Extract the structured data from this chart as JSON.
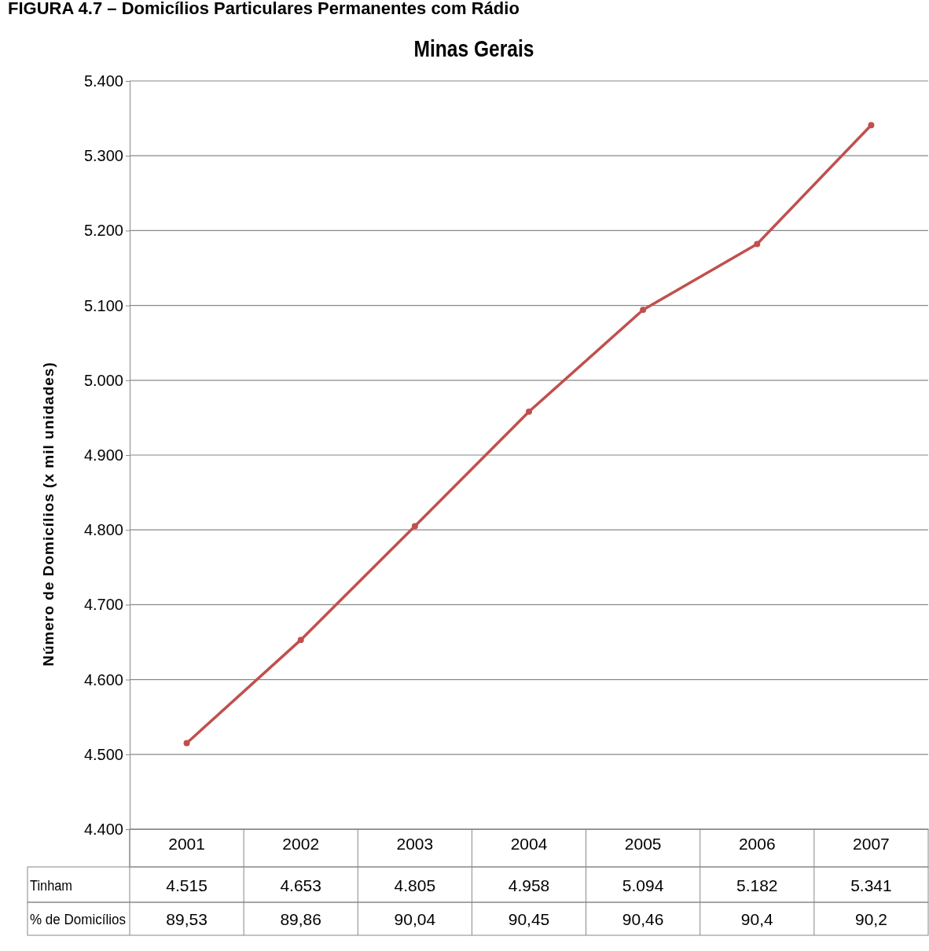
{
  "chart_data": {
    "type": "line",
    "title": "Minas Gerais",
    "ylabel": "Número de Domicílios (x mil unidades)",
    "annotations": [
      "FIGURA 4.7 – Domicílios Particulares Permanentes com Rádio",
      "% de Domicílios",
      "89,53",
      "89,86",
      "90,04",
      "90,45",
      "90,46",
      "90,4",
      "90,2"
    ],
    "categories": [
      "2001",
      "2002",
      "2003",
      "2004",
      "2005",
      "2006",
      "2007"
    ],
    "series": [
      {
        "name": "Tinham",
        "color": "#c0504d",
        "values": [
          4515,
          4653,
          4805,
          4958,
          5094,
          5182,
          5341
        ],
        "value_labels": [
          "4.515",
          "4.653",
          "4.805",
          "4.958",
          "5.094",
          "5.182",
          "5.341"
        ]
      }
    ],
    "ylim": [
      4400,
      5400
    ],
    "yticks": [
      {
        "value": 4400,
        "label": "4.400"
      },
      {
        "value": 4500,
        "label": "4.500"
      },
      {
        "value": 4600,
        "label": "4.600"
      },
      {
        "value": 4700,
        "label": "4.700"
      },
      {
        "value": 4800,
        "label": "4.800"
      },
      {
        "value": 4900,
        "label": "4.900"
      },
      {
        "value": 5000,
        "label": "5.000"
      },
      {
        "value": 5100,
        "label": "5.100"
      },
      {
        "value": 5200,
        "label": "5.200"
      },
      {
        "value": 5300,
        "label": "5.300"
      },
      {
        "value": 5400,
        "label": "5.400"
      }
    ],
    "grid": "y",
    "marker": "circle",
    "line_style": "solid",
    "legend": "bottom"
  }
}
